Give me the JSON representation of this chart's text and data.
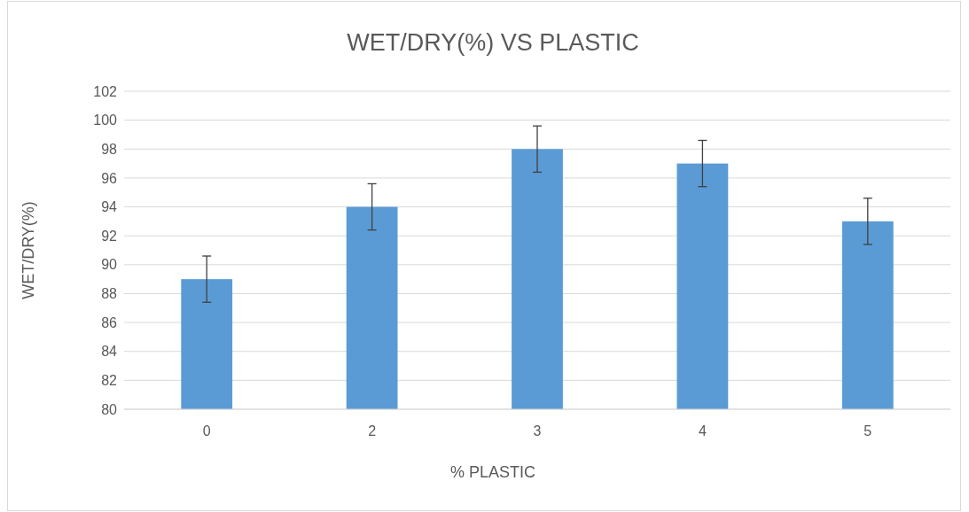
{
  "chart_data": {
    "type": "bar",
    "title": "WET/DRY(%) VS PLASTIC",
    "xlabel": "% PLASTIC",
    "ylabel": "WET/DRY(%)",
    "categories": [
      "0",
      "2",
      "3",
      "4",
      "5"
    ],
    "values": [
      89,
      94,
      98,
      97,
      93
    ],
    "errors": [
      1.6,
      1.6,
      1.6,
      1.6,
      1.6
    ],
    "color": "#5b9bd5",
    "ylim": [
      80,
      102
    ],
    "yticks": [
      80,
      82,
      84,
      86,
      88,
      90,
      92,
      94,
      96,
      98,
      100,
      102
    ],
    "grid": "y"
  }
}
